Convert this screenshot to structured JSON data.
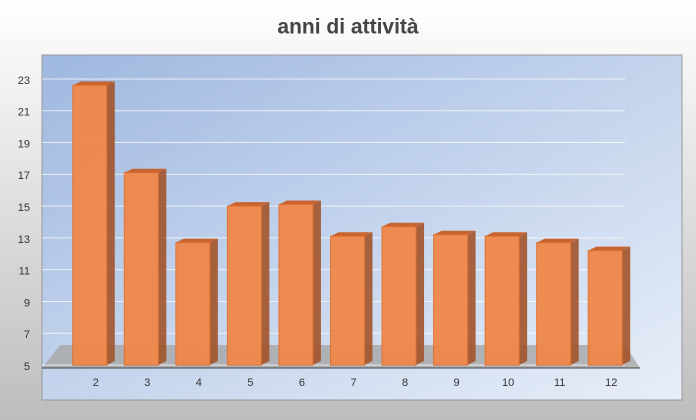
{
  "chart_data": {
    "type": "bar3d",
    "title": "anni di attività",
    "categories": [
      "2",
      "3",
      "4",
      "5",
      "6",
      "7",
      "8",
      "9",
      "10",
      "11",
      "12"
    ],
    "values": [
      22.6,
      17.1,
      12.7,
      15.0,
      15.1,
      13.1,
      13.7,
      13.2,
      13.1,
      12.7,
      12.2
    ],
    "color": "#f0874a",
    "ylim": [
      5,
      23
    ],
    "yticks": [
      5,
      7,
      9,
      11,
      13,
      15,
      17,
      19,
      21,
      23
    ],
    "grid": true
  }
}
